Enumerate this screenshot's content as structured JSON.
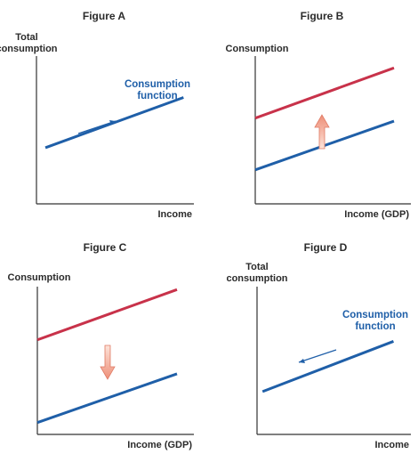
{
  "colors": {
    "consumption_line": "#1f5fa8",
    "shifted_line": "#c8324a",
    "shift_arrow": "#f2a48e",
    "axis": "#333333",
    "annotation_text": "#1f5fa8",
    "label_text": "#2b2b2b"
  },
  "chart_data": [
    {
      "type": "line",
      "title": "Figure A",
      "ylabel": [
        "Total",
        "consumption"
      ],
      "xlabel": "Income",
      "series": [
        {
          "name": "Consumption function",
          "x": [
            0.06,
            0.99
          ],
          "y": [
            0.38,
            0.72
          ],
          "color": "#1f5fa8"
        }
      ],
      "annotation": {
        "lines": [
          "Consumption",
          "function"
        ]
      },
      "movement_arrow": {
        "direction": "up-along-curve"
      }
    },
    {
      "type": "line",
      "title": "Figure B",
      "ylabel": [
        "Consumption"
      ],
      "xlabel": "Income (GDP)",
      "series": [
        {
          "x": [
            0.0,
            1.0
          ],
          "y": [
            0.23,
            0.56
          ],
          "color": "#1f5fa8"
        },
        {
          "x": [
            0.0,
            1.0
          ],
          "y": [
            0.58,
            0.92
          ],
          "color": "#c8324a"
        }
      ],
      "shift_arrow": {
        "direction": "up"
      }
    },
    {
      "type": "line",
      "title": "Figure C",
      "ylabel": [
        "Consumption"
      ],
      "xlabel": "Income (GDP)",
      "series": [
        {
          "x": [
            0.0,
            1.0
          ],
          "y": [
            0.64,
            0.98
          ],
          "color": "#c8324a"
        },
        {
          "x": [
            0.0,
            1.0
          ],
          "y": [
            0.08,
            0.41
          ],
          "color": "#1f5fa8"
        }
      ],
      "shift_arrow": {
        "direction": "down"
      }
    },
    {
      "type": "line",
      "title": "Figure D",
      "ylabel": [
        "Total",
        "consumption"
      ],
      "xlabel": "Income",
      "series": [
        {
          "name": "Consumption function",
          "x": [
            0.04,
            0.99
          ],
          "y": [
            0.29,
            0.63
          ],
          "color": "#1f5fa8"
        }
      ],
      "annotation": {
        "lines": [
          "Consumption",
          "function"
        ]
      },
      "movement_arrow": {
        "direction": "down-along-curve"
      }
    }
  ]
}
